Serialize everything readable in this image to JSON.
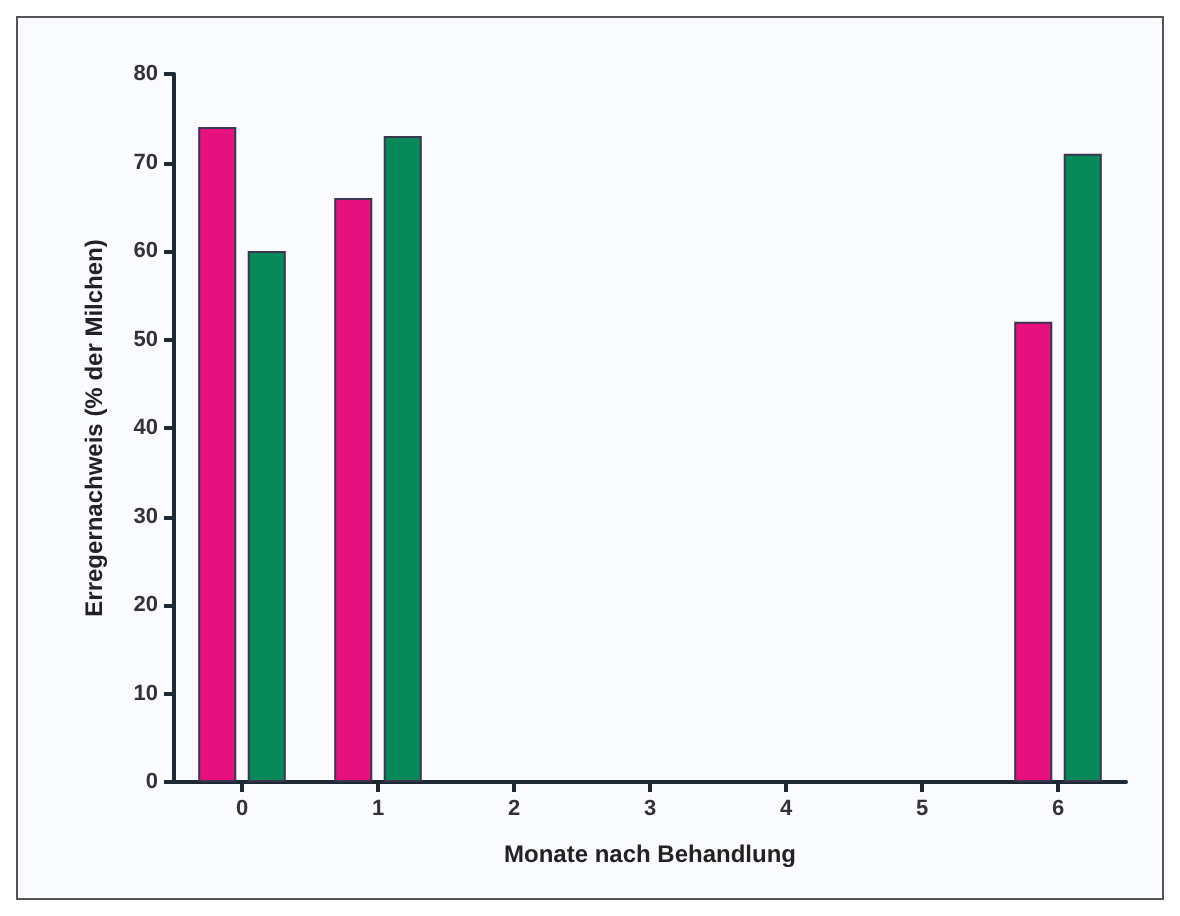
{
  "chart_data": {
    "type": "bar",
    "xlabel": "Monate nach Behandlung",
    "ylabel": "Erregernachweis (% der Milchen)",
    "categories": [
      "0",
      "1",
      "2",
      "3",
      "4",
      "5",
      "6"
    ],
    "series": [
      {
        "color": "#e6117f",
        "values": [
          74,
          66,
          null,
          null,
          null,
          null,
          52
        ]
      },
      {
        "color": "#08895a",
        "values": [
          60,
          73,
          null,
          null,
          null,
          null,
          71
        ]
      }
    ],
    "ylim": [
      0,
      80
    ],
    "yticks": [
      0,
      10,
      20,
      30,
      40,
      50,
      60,
      70,
      80
    ]
  }
}
